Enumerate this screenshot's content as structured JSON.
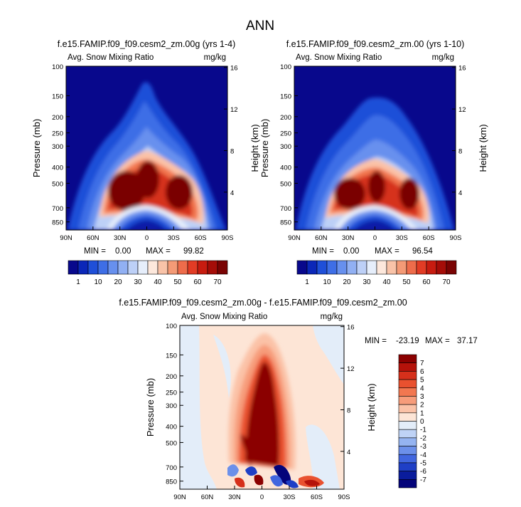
{
  "figure_title": "ANN",
  "chart_data": [
    {
      "type": "heatmap",
      "title": "f.e15.FAMIP.f09_f09.cesm2_zm.00g (yrs 1-4)",
      "field_label": "Avg. Snow Mixing Ratio",
      "units": "mg/kg",
      "ylabel": "Pressure (mb)",
      "ylabel_right": "Height (km)",
      "x_ticks": [
        "90N",
        "60N",
        "30N",
        "0",
        "30S",
        "60S",
        "90S"
      ],
      "y_ticks": [
        "100",
        "150",
        "200",
        "250",
        "300",
        "400",
        "500",
        "700",
        "850"
      ],
      "y2_ticks": [
        "16",
        "12",
        "8",
        "4"
      ],
      "min_label": "MIN =",
      "min_value": "0.00",
      "max_label": "MAX =",
      "max_value": "99.82"
    },
    {
      "type": "heatmap",
      "title": "f.e15.FAMIP.f09_f09.cesm2_zm.00 (yrs 1-10)",
      "field_label": "Avg. Snow Mixing Ratio",
      "units": "mg/kg",
      "ylabel": "Pressure (mb)",
      "ylabel_right": "Height (km)",
      "x_ticks": [
        "90N",
        "60N",
        "30N",
        "0",
        "30S",
        "60S",
        "90S"
      ],
      "y_ticks": [
        "100",
        "150",
        "200",
        "250",
        "300",
        "400",
        "500",
        "700",
        "850"
      ],
      "y2_ticks": [
        "16",
        "12",
        "8",
        "4"
      ],
      "min_label": "MIN =",
      "min_value": "0.00",
      "max_label": "MAX =",
      "max_value": "96.54"
    },
    {
      "type": "heatmap",
      "title": "f.e15.FAMIP.f09_f09.cesm2_zm.00g - f.e15.FAMIP.f09_f09.cesm2_zm.00",
      "field_label": "Avg. Snow Mixing Ratio",
      "units": "mg/kg",
      "ylabel": "Pressure (mb)",
      "ylabel_right": "Height (km)",
      "x_ticks": [
        "90N",
        "60N",
        "30N",
        "0",
        "30S",
        "60S",
        "90S"
      ],
      "y_ticks": [
        "100",
        "150",
        "200",
        "250",
        "300",
        "400",
        "500",
        "700",
        "850"
      ],
      "y2_ticks": [
        "16",
        "12",
        "8",
        "4"
      ],
      "min_label": "MIN =",
      "min_value": "-23.19",
      "max_label": "MAX =",
      "max_value": "37.17"
    }
  ],
  "colorbar_top": {
    "labels": [
      "1",
      "10",
      "20",
      "30",
      "40",
      "50",
      "60",
      "70"
    ],
    "colors": [
      "#08088c",
      "#0b27b8",
      "#1f4fd8",
      "#3e6ee6",
      "#6790ee",
      "#91b0f3",
      "#bdd0f7",
      "#e6eefb",
      "#fde8dc",
      "#f9c3a8",
      "#f49a76",
      "#ee6c4b",
      "#e23c25",
      "#c71c10",
      "#a50d08",
      "#7a0303"
    ]
  },
  "colorbar_diff": {
    "labels": [
      "7",
      "6",
      "5",
      "4",
      "3",
      "2",
      "1",
      "0",
      "-1",
      "-2",
      "-3",
      "-4",
      "-5",
      "-6",
      "-7"
    ],
    "colors": [
      "#8b0000",
      "#b5120a",
      "#d6301b",
      "#e9512f",
      "#f27750",
      "#f79c7a",
      "#fbc2a7",
      "#fde5d6",
      "#e3edf9",
      "#bfd3f6",
      "#95b4f1",
      "#6c90ea",
      "#4166df",
      "#1f3fc6",
      "#0a1c9c",
      "#04047a"
    ]
  },
  "colors": {
    "ncar_navy": "#0a0a8c",
    "deep_red": "#7a0303",
    "diff_bg": "#fde5d6"
  }
}
